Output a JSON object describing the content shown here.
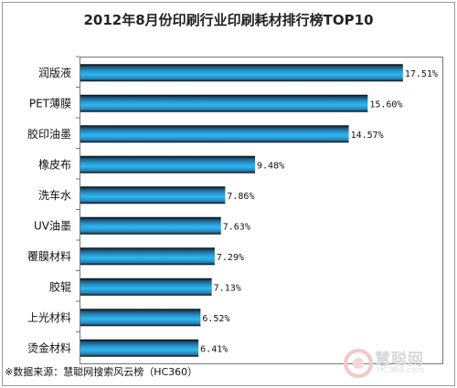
{
  "chart_data": {
    "type": "bar",
    "orientation": "horizontal",
    "title": "2012年8月份印刷行业印刷耗材排行榜TOP10",
    "categories": [
      "润版液",
      "PET薄膜",
      "胶印油墨",
      "橡皮布",
      "洗车水",
      "UV油墨",
      "覆膜材料",
      "胶辊",
      "上光材料",
      "烫金材料"
    ],
    "values": [
      17.51,
      15.6,
      14.57,
      9.48,
      7.86,
      7.63,
      7.29,
      7.13,
      6.52,
      6.41
    ],
    "data_labels": [
      "17.51%",
      "15.60%",
      "14.57%",
      "9.48%",
      "7.86%",
      "7.63%",
      "7.29%",
      "7.13%",
      "6.52%",
      "6.41%"
    ],
    "xlim": [
      0,
      18
    ],
    "grid": false,
    "legend": "none",
    "bar_gradient": [
      "#0a0a0a",
      "#1e5e86",
      "#2a9ad6",
      "#2bb8ee",
      "#2a7fb5",
      "#0b0b0b"
    ]
  },
  "footer": {
    "source": "※数据来源：慧聪网搜索风云榜（HC360）"
  },
  "watermark": {
    "brand": "慧聪网",
    "domain": "HC360.com"
  }
}
